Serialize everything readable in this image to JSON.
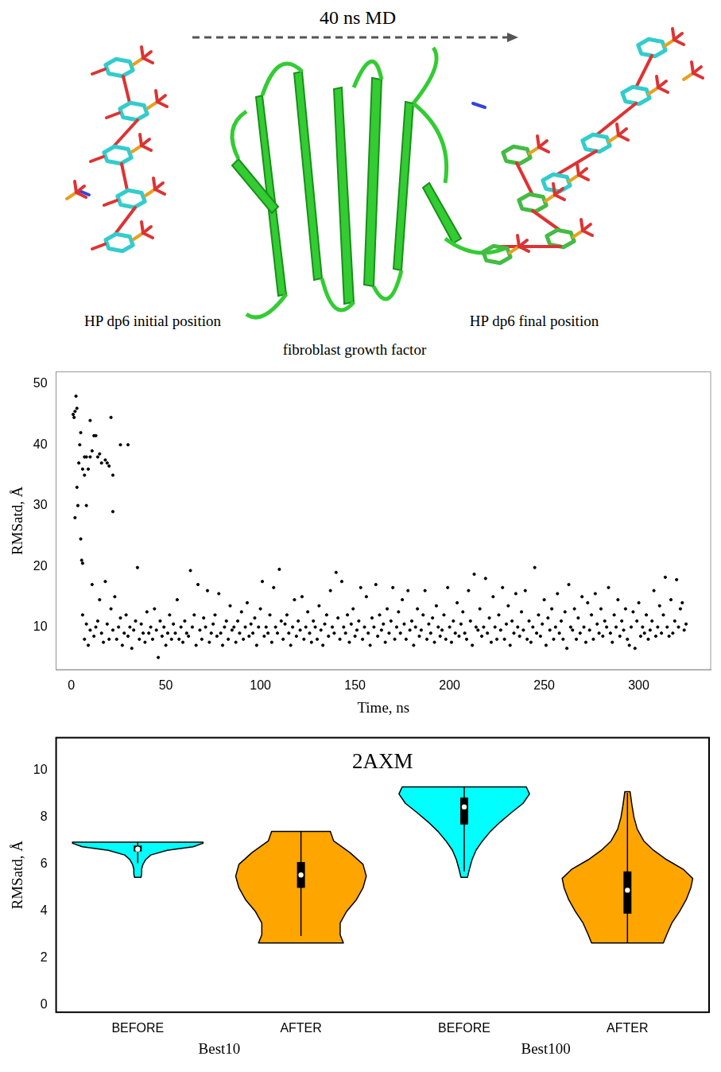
{
  "illustration": {
    "arrow_label": "40 ns MD",
    "initial_label": "HP dp6 initial position",
    "final_label": "HP dp6 final position",
    "protein_label": "fibroblast growth factor"
  },
  "chart_data": [
    {
      "type": "scatter",
      "x_label": "Time, ns",
      "y_label": "RMSatd, Å",
      "xlim": [
        -8,
        338
      ],
      "xticks": [
        0,
        50,
        100,
        150,
        200,
        250,
        300
      ],
      "ylim": [
        3,
        52
      ],
      "yticks": [
        10,
        20,
        30,
        40,
        50
      ],
      "grid": false,
      "color": "#000000",
      "marker": "circle",
      "x": [
        1,
        1.5,
        2,
        2.5,
        3,
        2,
        3,
        3.5,
        4,
        4.5,
        5,
        5,
        5.5,
        6,
        6,
        7,
        7,
        8,
        8,
        9,
        10,
        10,
        11,
        12,
        13,
        14,
        15,
        16,
        18,
        19,
        20,
        21,
        22,
        22,
        26,
        30,
        6,
        7,
        8,
        9,
        10,
        11,
        12,
        13,
        14,
        15,
        16,
        17,
        18,
        19,
        20,
        21,
        22,
        23,
        24,
        25,
        26,
        27,
        28,
        29,
        30,
        31,
        32,
        33,
        34,
        35,
        36,
        37,
        38,
        39,
        40,
        41,
        42,
        43,
        44,
        45,
        46,
        47,
        48,
        49,
        50,
        51,
        52,
        53,
        54,
        55,
        56,
        57,
        58,
        59,
        60,
        61,
        62,
        63,
        64,
        65,
        66,
        67,
        68,
        69,
        70,
        71,
        72,
        73,
        74,
        75,
        76,
        77,
        78,
        79,
        80,
        81,
        82,
        83,
        84,
        85,
        86,
        87,
        88,
        89,
        90,
        91,
        92,
        93,
        94,
        95,
        96,
        97,
        98,
        99,
        100,
        101,
        102,
        103,
        104,
        105,
        106,
        107,
        108,
        109,
        110,
        111,
        112,
        113,
        114,
        115,
        116,
        117,
        118,
        119,
        120,
        121,
        122,
        123,
        124,
        125,
        126,
        127,
        128,
        129,
        130,
        131,
        132,
        133,
        134,
        135,
        136,
        137,
        138,
        139,
        140,
        141,
        142,
        143,
        144,
        145,
        146,
        147,
        148,
        149,
        150,
        151,
        152,
        153,
        154,
        155,
        156,
        157,
        158,
        159,
        160,
        161,
        162,
        163,
        164,
        165,
        166,
        167,
        168,
        169,
        170,
        171,
        172,
        173,
        174,
        175,
        176,
        177,
        178,
        179,
        180,
        181,
        182,
        183,
        184,
        185,
        186,
        187,
        188,
        189,
        190,
        191,
        192,
        193,
        194,
        195,
        196,
        197,
        198,
        199,
        200,
        201,
        202,
        203,
        204,
        205,
        206,
        207,
        208,
        209,
        210,
        211,
        212,
        213,
        214,
        215,
        216,
        217,
        218,
        219,
        220,
        221,
        222,
        223,
        224,
        225,
        226,
        227,
        228,
        229,
        230,
        231,
        232,
        233,
        234,
        235,
        236,
        237,
        238,
        239,
        240,
        241,
        242,
        243,
        244,
        245,
        246,
        247,
        248,
        249,
        250,
        251,
        252,
        253,
        254,
        255,
        256,
        257,
        258,
        259,
        260,
        261,
        262,
        263,
        264,
        265,
        266,
        267,
        268,
        269,
        270,
        271,
        272,
        273,
        274,
        275,
        276,
        277,
        278,
        279,
        280,
        281,
        282,
        283,
        284,
        285,
        286,
        287,
        288,
        289,
        290,
        291,
        292,
        293,
        294,
        295,
        296,
        297,
        298,
        299,
        300,
        301,
        302,
        303,
        304,
        305,
        306,
        307,
        308,
        309,
        310,
        311,
        312,
        313,
        314,
        315,
        316,
        317,
        318,
        319,
        320,
        321,
        322,
        323,
        324,
        325
      ],
      "values": [
        45,
        44.5,
        45.5,
        48,
        46,
        28,
        33,
        30,
        37,
        40,
        42,
        24.5,
        21,
        20.5,
        36,
        35,
        38,
        38,
        30,
        36,
        38,
        44,
        39,
        41.5,
        41.5,
        38,
        38.5,
        37,
        37.5,
        37,
        36.5,
        44.5,
        35,
        29,
        40,
        40,
        12,
        8,
        10.5,
        7,
        9.5,
        17,
        8.5,
        10,
        11,
        14.5,
        9,
        7.5,
        17.5,
        10.5,
        8,
        13,
        9.5,
        15,
        8,
        10,
        11.5,
        7,
        9,
        12,
        8.5,
        10,
        6.5,
        9.5,
        11,
        19.8,
        8,
        10.5,
        9,
        7.5,
        12.5,
        9,
        10,
        8,
        13,
        9.5,
        5,
        11,
        8.5,
        10,
        7,
        9,
        12,
        8,
        10.5,
        9,
        14.5,
        8,
        10,
        7.5,
        11,
        9,
        8.5,
        19.3,
        10,
        12,
        7,
        17,
        9.5,
        8,
        11.5,
        10,
        16,
        7.5,
        9,
        10.5,
        12,
        8.5,
        15.5,
        9,
        7,
        10,
        11,
        8,
        13.5,
        9.5,
        10,
        7.5,
        11,
        9,
        12.5,
        8,
        10,
        14,
        8.5,
        10.5,
        9,
        11.5,
        7,
        10,
        13,
        17.5,
        8.5,
        10,
        9,
        12,
        7.5,
        16.5,
        10,
        9,
        19.5,
        11,
        8,
        10.5,
        12,
        9,
        7,
        10,
        14.5,
        8.5,
        11,
        9.5,
        15,
        8,
        10,
        12.5,
        9,
        7.5,
        11,
        10,
        8,
        13.5,
        9.5,
        7,
        10.5,
        12,
        8.5,
        16,
        10,
        9,
        19,
        11.5,
        8,
        17.5,
        10,
        9,
        12,
        7.5,
        10.5,
        13,
        8.5,
        9.5,
        11,
        16.5,
        8,
        10,
        15,
        9,
        7,
        11.5,
        10,
        17,
        8.5,
        12,
        9.5,
        10.5,
        7.5,
        13,
        9,
        11,
        16.5,
        8,
        10,
        12.5,
        9,
        14.5,
        10.5,
        8,
        16,
        9.5,
        11,
        7,
        10,
        13,
        8.5,
        9.5,
        12,
        16,
        8,
        10.5,
        9,
        11.5,
        7.5,
        13.5,
        10,
        8.5,
        9.5,
        12,
        8,
        16.5,
        10,
        7.5,
        11,
        9,
        14,
        8.5,
        10.5,
        12.5,
        9,
        8,
        16,
        11,
        7,
        18.7,
        10,
        9.5,
        13,
        8.5,
        10,
        18,
        9,
        11.5,
        7.5,
        15,
        10,
        8,
        12,
        9.5,
        16.5,
        8,
        10.5,
        13.5,
        7,
        11,
        9,
        15.5,
        10,
        8.5,
        12.5,
        9.5,
        16,
        8,
        11,
        7.5,
        10,
        19.8,
        9,
        12,
        8.5,
        10.5,
        14.5,
        7,
        11.5,
        9.5,
        13,
        8,
        10,
        15.5,
        9,
        11,
        8,
        12.5,
        6.5,
        17,
        10,
        9.5,
        13,
        8,
        11.5,
        9,
        15,
        10,
        7.5,
        14,
        9.5,
        12,
        8,
        15.5,
        10.5,
        9,
        13,
        8.5,
        11,
        10,
        16.5,
        9,
        7.5,
        12,
        10,
        14.5,
        8.5,
        11,
        9.5,
        13,
        8,
        7,
        10,
        12.5,
        6.5,
        11,
        14,
        8.5,
        10,
        9,
        12,
        8,
        9.5,
        11,
        16,
        8.5,
        10,
        13.5,
        9,
        12,
        18.2,
        10,
        8.5,
        14.5,
        9,
        11,
        17.8,
        10,
        13,
        14,
        9.5,
        10.5
      ]
    },
    {
      "type": "violin",
      "title": "2AXM",
      "y_label": "RMSatd, Å",
      "categories": [
        "BEFORE",
        "AFTER",
        "BEFORE",
        "AFTER"
      ],
      "groups": [
        "Best10",
        "Best10",
        "Best100",
        "Best100"
      ],
      "colors": [
        "#00ffff",
        "#ffa500",
        "#00ffff",
        "#ffa500"
      ],
      "ylim": [
        -0.3,
        11.4
      ],
      "yticks": [
        0,
        2,
        4,
        6,
        8,
        10
      ],
      "grid": false,
      "violins": [
        {
          "density_y": [
            5.45,
            5.6,
            5.8,
            6.0,
            6.2,
            6.4,
            6.6,
            6.75,
            6.9,
            6.95
          ],
          "density": [
            0.05,
            0.06,
            0.06,
            0.08,
            0.12,
            0.2,
            0.45,
            0.85,
            1.0,
            1.0
          ],
          "whisker_low": 6.05,
          "q1": 6.55,
          "median": 6.65,
          "q3": 6.8,
          "whisker_high": 6.95
        },
        {
          "density_y": [
            2.65,
            3.0,
            3.5,
            4.0,
            4.5,
            5.0,
            5.5,
            6.0,
            6.5,
            7.0,
            7.4
          ],
          "density": [
            0.65,
            0.6,
            0.6,
            0.7,
            0.85,
            0.95,
            1.0,
            0.95,
            0.75,
            0.5,
            0.45
          ],
          "whisker_low": 2.95,
          "q1": 5.0,
          "median": 5.55,
          "q3": 6.1,
          "whisker_high": 7.4
        },
        {
          "density_y": [
            5.45,
            5.8,
            6.2,
            6.6,
            7.0,
            7.4,
            7.8,
            8.2,
            8.6,
            9.0,
            9.3
          ],
          "density": [
            0.05,
            0.08,
            0.12,
            0.18,
            0.28,
            0.4,
            0.55,
            0.72,
            0.9,
            1.0,
            0.95
          ],
          "whisker_low": 5.7,
          "q1": 7.7,
          "median": 8.45,
          "q3": 8.85,
          "whisker_high": 9.3
        },
        {
          "density_y": [
            2.65,
            3.0,
            3.5,
            4.0,
            4.5,
            5.0,
            5.4,
            5.8,
            6.2,
            6.6,
            7.0,
            7.5,
            8.0,
            8.5,
            9.1
          ],
          "density": [
            0.55,
            0.6,
            0.68,
            0.8,
            0.9,
            0.97,
            1.0,
            0.85,
            0.6,
            0.4,
            0.25,
            0.15,
            0.1,
            0.07,
            0.04
          ],
          "whisker_low": 2.65,
          "q1": 3.9,
          "median": 4.9,
          "q3": 5.7,
          "whisker_high": 9.05
        }
      ]
    }
  ]
}
